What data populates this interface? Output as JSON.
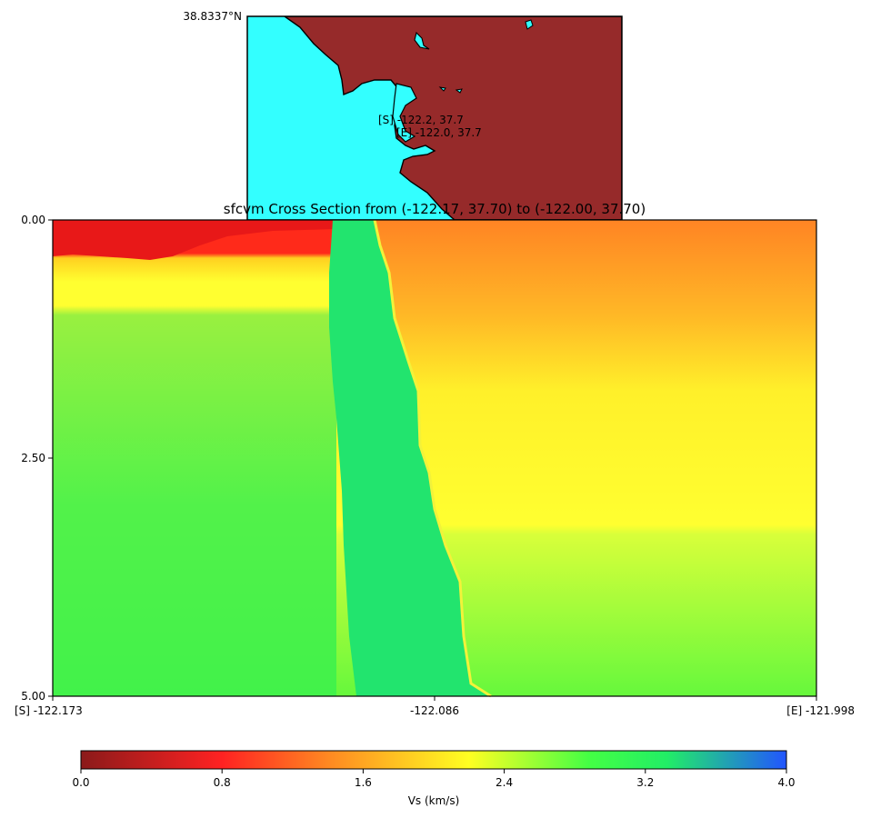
{
  "map_inset": {
    "corner_label": "38.8337°N",
    "markers": [
      "[S] -122.2, 37.7",
      "[E] -122.0, 37.7"
    ],
    "colors": {
      "water": "#33FFFF",
      "land": "#962A2A",
      "coast": "#000000"
    }
  },
  "chart_data": [
    {
      "type": "heatmap",
      "title": "sfcvm Cross Section from (-122.17, 37.70) to (-122.00, 37.70)",
      "xlabel": "",
      "ylabel": "",
      "x_ticks": [
        "[S] -122.173",
        "-122.086",
        "[E] -121.998"
      ],
      "x_range": [
        -122.173,
        -121.998
      ],
      "y_ticks": [
        "0.00",
        "2.50",
        "5.00"
      ],
      "y_range": [
        0,
        5
      ],
      "y_inverted": true,
      "z_label": "Vs (km/s)",
      "z_range": [
        0,
        4.0
      ],
      "fault_zone_x": [
        -122.098,
        -122.075
      ],
      "west_block_vs": [
        {
          "depth": 0.0,
          "vs": 0.4
        },
        {
          "depth": 0.3,
          "vs": 0.6
        },
        {
          "depth": 0.5,
          "vs": 1.9
        },
        {
          "depth": 0.9,
          "vs": 2.0
        },
        {
          "depth": 1.0,
          "vs": 2.8
        },
        {
          "depth": 3.0,
          "vs": 3.0
        },
        {
          "depth": 5.0,
          "vs": 3.0
        }
      ],
      "east_block_vs": [
        {
          "depth": 0.0,
          "vs": 1.3
        },
        {
          "depth": 1.0,
          "vs": 1.6
        },
        {
          "depth": 1.8,
          "vs": 2.0
        },
        {
          "depth": 3.2,
          "vs": 2.3
        },
        {
          "depth": 5.0,
          "vs": 2.8
        }
      ],
      "fault_zone_vs": 3.2
    },
    {
      "type": "colorbar",
      "label": "Vs (km/s)",
      "ticks": [
        "0.0",
        "0.8",
        "1.6",
        "2.4",
        "3.2",
        "4.0"
      ],
      "range": [
        0.0,
        4.0
      ],
      "colors": [
        "#8B1A1A",
        "#FF2222",
        "#FF8822",
        "#FFFF22",
        "#44FF44",
        "#22EE66",
        "#2255FF"
      ]
    }
  ]
}
